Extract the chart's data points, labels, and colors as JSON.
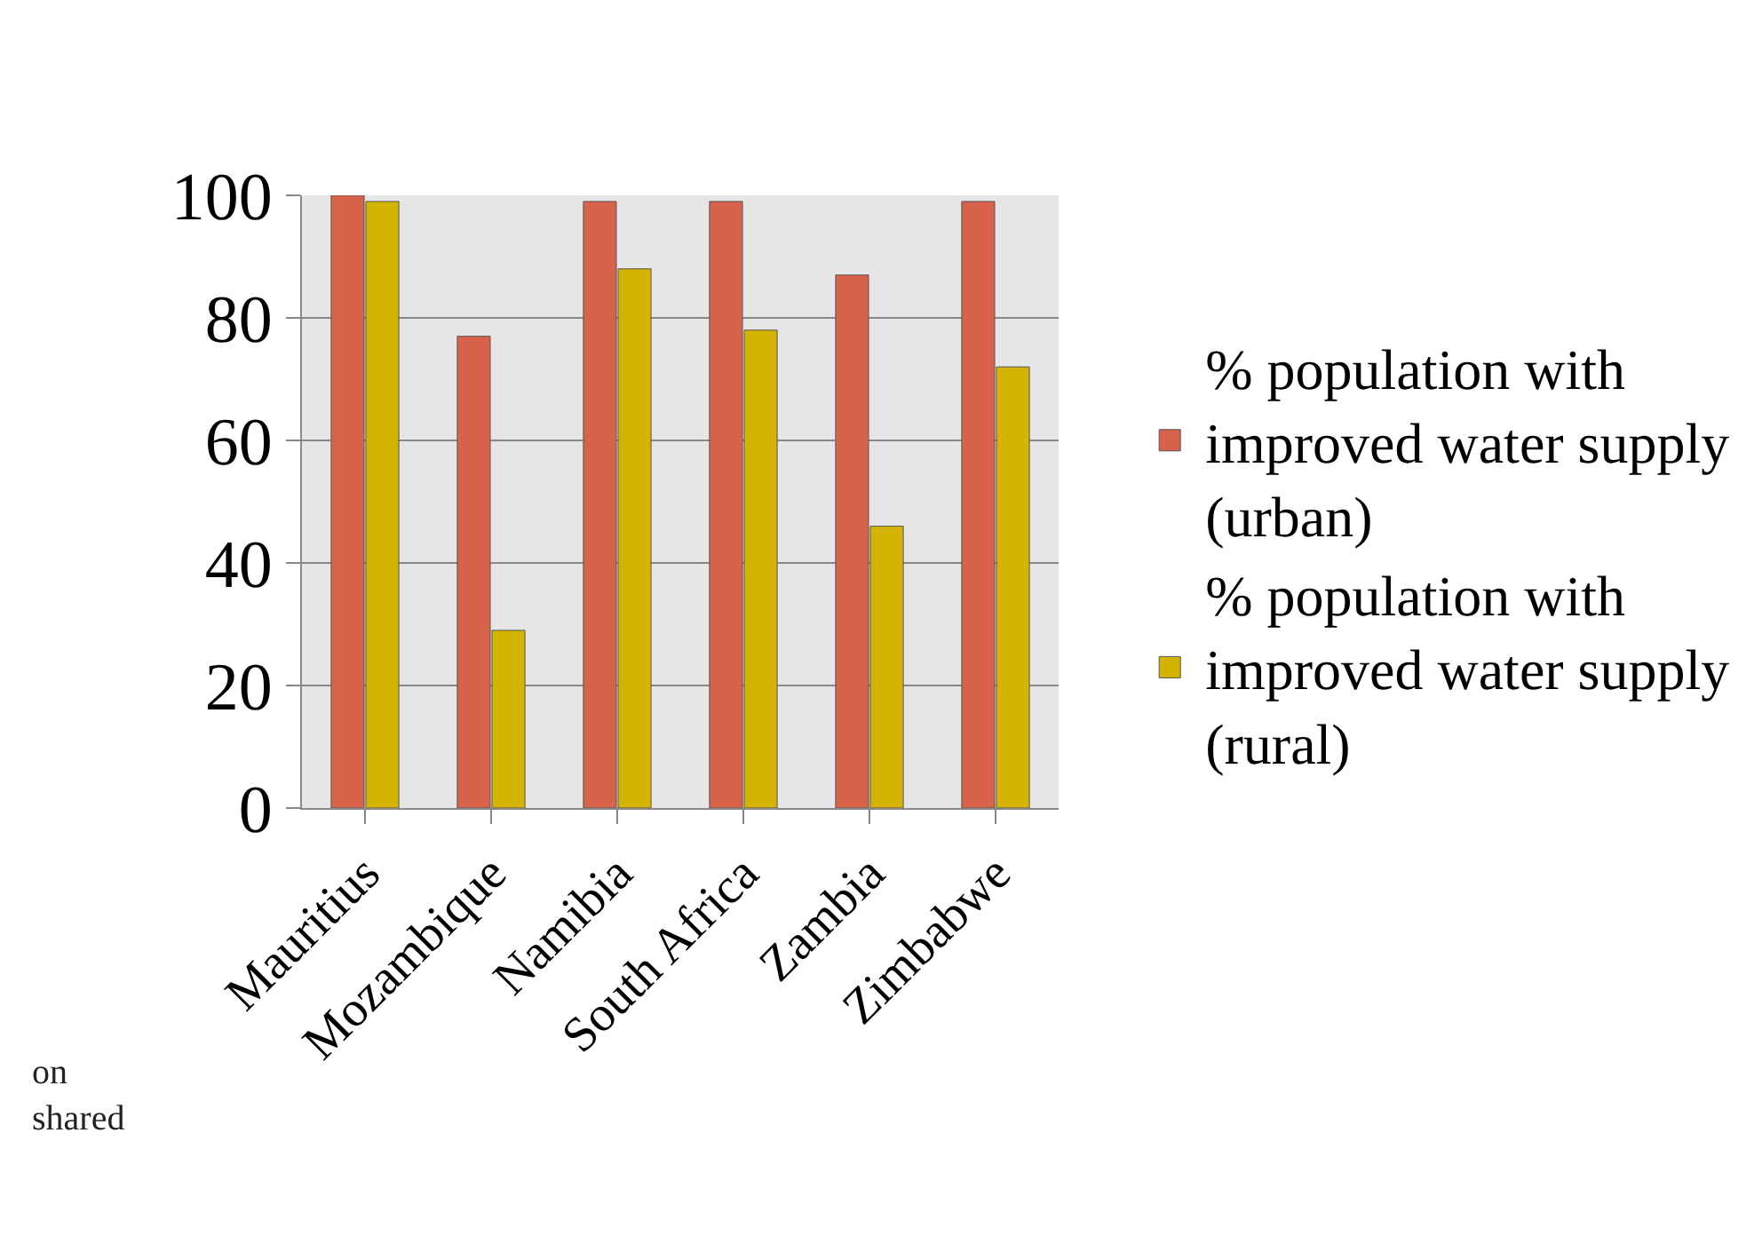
{
  "chart_data": {
    "type": "bar",
    "categories": [
      "Mauritius",
      "Mozambique",
      "Namibia",
      "South Africa",
      "Zambia",
      "Zimbabwe"
    ],
    "series": [
      {
        "name": "% population with improved water supply (urban)",
        "color": "#d9634a",
        "values": [
          100,
          77,
          99,
          99,
          87,
          99
        ]
      },
      {
        "name": "% population with improved water supply (rural)",
        "color": "#d4b400",
        "values": [
          99,
          29,
          88,
          78,
          46,
          72
        ]
      }
    ],
    "ylim": [
      0,
      100
    ],
    "yticks": [
      0,
      20,
      40,
      60,
      80,
      100
    ],
    "grid": "y",
    "legend": "right",
    "annotations": [
      "on",
      "shared"
    ]
  }
}
